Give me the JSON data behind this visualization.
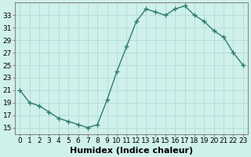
{
  "x": [
    0,
    1,
    2,
    3,
    4,
    5,
    6,
    7,
    8,
    9,
    10,
    11,
    12,
    13,
    14,
    15,
    16,
    17,
    18,
    19,
    20,
    21,
    22,
    23
  ],
  "y": [
    21,
    19,
    18.5,
    17.5,
    16.5,
    16,
    15.5,
    15,
    15.5,
    19.5,
    24,
    28,
    32,
    34,
    33.5,
    33,
    34,
    34.5,
    33,
    32,
    30.5,
    29.5,
    27,
    25
  ],
  "line_color": "#2e7d6e",
  "marker": "+",
  "marker_size": 4,
  "bg_color": "#cff0eb",
  "grid_color": "#b8ddd8",
  "xlabel": "Humidex (Indice chaleur)",
  "xlim": [
    -0.5,
    23.5
  ],
  "ylim": [
    14,
    35
  ],
  "yticks": [
    15,
    17,
    19,
    21,
    23,
    25,
    27,
    29,
    31,
    33
  ],
  "xticks": [
    0,
    1,
    2,
    3,
    4,
    5,
    6,
    7,
    8,
    9,
    10,
    11,
    12,
    13,
    14,
    15,
    16,
    17,
    18,
    19,
    20,
    21,
    22,
    23
  ],
  "xtick_labels": [
    "0",
    "1",
    "2",
    "3",
    "4",
    "5",
    "6",
    "7",
    "8",
    "9",
    "10",
    "11",
    "12",
    "13",
    "14",
    "15",
    "16",
    "17",
    "18",
    "19",
    "20",
    "21",
    "22",
    "23"
  ],
  "tick_fontsize": 6.5,
  "xlabel_fontsize": 8,
  "line_width": 1.0,
  "spine_color": "#888888"
}
